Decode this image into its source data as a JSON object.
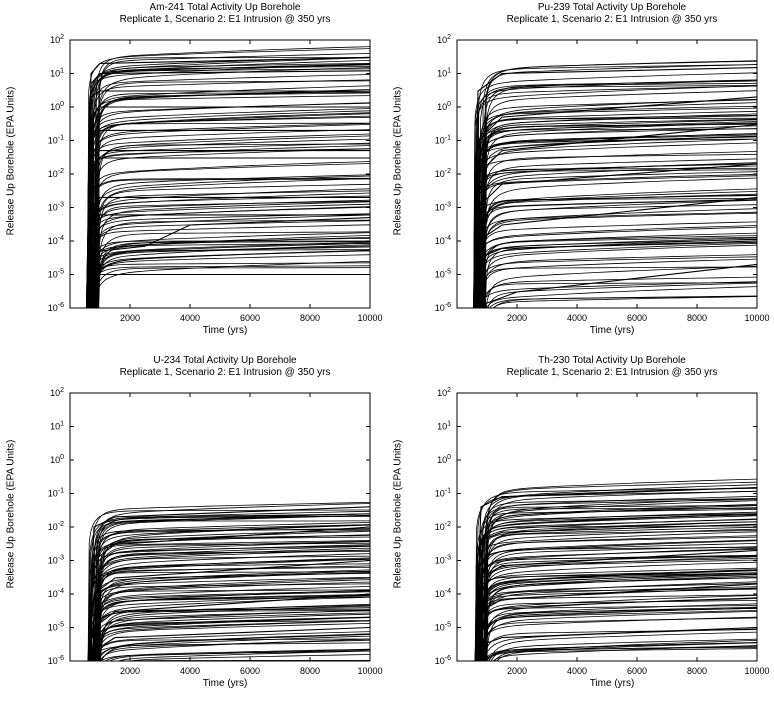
{
  "chart_data": [
    {
      "type": "line",
      "title": "Am-241 Total Activity Up Borehole",
      "subtitle": "Replicate 1, Scenario 2: E1 Intrusion @ 350 yrs",
      "xlabel": "Time (yrs)",
      "ylabel": "Release Up Borehole (EPA Units)",
      "xlim": [
        0,
        10000
      ],
      "ylim": [
        1e-06,
        100
      ],
      "yscale": "log",
      "grid": false,
      "x_ticks": [
        "2000",
        "4000",
        "6000",
        "8000",
        "10000"
      ],
      "y_ticks": [
        "10^-6",
        "10^-5",
        "10^-4",
        "10^-3",
        "10^-2",
        "10^-1",
        "10^0",
        "10^1",
        "10^2"
      ],
      "series_count": 100,
      "onset_time": 550,
      "level_range": [
        1e-05,
        30
      ],
      "series": [
        {
          "x": [
            550,
            700,
            1000,
            10000
          ],
          "y": [
            1e-06,
            10,
            20,
            30
          ]
        },
        {
          "x": [
            550,
            700,
            1000,
            10000
          ],
          "y": [
            1e-06,
            5,
            10,
            12
          ]
        },
        {
          "x": [
            550,
            700,
            1000,
            10000
          ],
          "y": [
            1e-06,
            2,
            3,
            3
          ]
        },
        {
          "x": [
            550,
            700,
            1000,
            10000
          ],
          "y": [
            1e-06,
            0.5,
            1,
            1
          ]
        },
        {
          "x": [
            550,
            700,
            1000,
            10000
          ],
          "y": [
            1e-06,
            0.1,
            0.2,
            0.2
          ]
        },
        {
          "x": [
            550,
            700,
            1000,
            10000
          ],
          "y": [
            1e-06,
            0.03,
            0.05,
            0.05
          ]
        },
        {
          "x": [
            550,
            700,
            1000,
            10000
          ],
          "y": [
            1e-06,
            0.02,
            0.03,
            0.03
          ]
        },
        {
          "x": [
            550,
            700,
            1000,
            10000
          ],
          "y": [
            1e-06,
            0.001,
            0.002,
            0.002
          ]
        },
        {
          "x": [
            550,
            700,
            1000,
            10000
          ],
          "y": [
            1e-06,
            0.0003,
            0.0006,
            0.0006
          ]
        },
        {
          "x": [
            550,
            1000,
            2500,
            4000,
            10000
          ],
          "y": [
            1e-06,
            5e-05,
            7e-05,
            0.0003,
            0.0005
          ]
        },
        {
          "x": [
            550,
            700,
            1000,
            10000
          ],
          "y": [
            1e-06,
            5e-06,
            1e-05,
            1e-05
          ]
        }
      ]
    },
    {
      "type": "line",
      "title": "Pu-239 Total Activity Up Borehole",
      "subtitle": "Replicate 1, Scenario 2: E1 Intrusion @ 350 yrs",
      "xlabel": "Time (yrs)",
      "ylabel": "Release Up Borehole (EPA Units)",
      "xlim": [
        0,
        10000
      ],
      "ylim": [
        1e-06,
        100
      ],
      "yscale": "log",
      "grid": false,
      "x_ticks": [
        "2000",
        "4000",
        "6000",
        "8000",
        "10000"
      ],
      "y_ticks": [
        "10^-6",
        "10^-5",
        "10^-4",
        "10^-3",
        "10^-2",
        "10^-1",
        "10^0",
        "10^1",
        "10^2"
      ],
      "series_count": 100,
      "onset_time": 550,
      "level_range": [
        1e-06,
        15
      ],
      "series": [
        {
          "x": [
            550,
            700,
            1500,
            10000
          ],
          "y": [
            1e-06,
            3,
            10,
            15
          ]
        },
        {
          "x": [
            550,
            700,
            1500,
            10000
          ],
          "y": [
            1e-06,
            0.1,
            0.5,
            2
          ]
        },
        {
          "x": [
            550,
            700,
            1500,
            10000
          ],
          "y": [
            1e-06,
            0.01,
            0.05,
            0.3
          ]
        },
        {
          "x": [
            550,
            700,
            1500,
            10000
          ],
          "y": [
            1e-06,
            0.001,
            0.005,
            0.02
          ]
        },
        {
          "x": [
            550,
            700,
            1500,
            10000
          ],
          "y": [
            1e-06,
            0.0001,
            0.0003,
            0.002
          ]
        },
        {
          "x": [
            550,
            700,
            1500,
            10000
          ],
          "y": [
            1e-06,
            3e-05,
            6e-05,
            0.0001
          ]
        },
        {
          "x": [
            550,
            2000,
            10000
          ],
          "y": [
            1e-06,
            3e-06,
            2e-05
          ]
        }
      ]
    },
    {
      "type": "line",
      "title": "U-234 Total Activity Up Borehole",
      "subtitle": "Replicate 1, Scenario 2: E1 Intrusion @ 350 yrs",
      "xlabel": "Time (yrs)",
      "ylabel": "Release Up Borehole (EPA Units)",
      "xlim": [
        0,
        10000
      ],
      "ylim": [
        1e-06,
        100
      ],
      "yscale": "log",
      "grid": false,
      "x_ticks": [
        "2000",
        "4000",
        "6000",
        "8000",
        "10000"
      ],
      "y_ticks": [
        "10^-6",
        "10^-5",
        "10^-4",
        "10^-3",
        "10^-2",
        "10^-1",
        "10^0",
        "10^1",
        "10^2"
      ],
      "series_count": 100,
      "onset_time": 600,
      "level_range": [
        1e-06,
        0.04
      ],
      "series": [
        {
          "x": [
            600,
            800,
            1500,
            10000
          ],
          "y": [
            1e-06,
            0.01,
            0.02,
            0.04
          ]
        },
        {
          "x": [
            600,
            800,
            1500,
            10000
          ],
          "y": [
            1e-06,
            0.001,
            0.003,
            0.01
          ]
        },
        {
          "x": [
            600,
            800,
            1500,
            10000
          ],
          "y": [
            1e-06,
            0.0001,
            0.0003,
            0.001
          ]
        },
        {
          "x": [
            600,
            800,
            1500,
            10000
          ],
          "y": [
            1e-06,
            1e-05,
            3e-05,
            0.0001
          ]
        },
        {
          "x": [
            600,
            800,
            1500,
            10000
          ],
          "y": [
            1e-06,
            2e-06,
            5e-06,
            1e-05
          ]
        }
      ]
    },
    {
      "type": "line",
      "title": "Th-230 Total Activity Up Borehole",
      "subtitle": "Replicate 1, Scenario 2: E1 Intrusion @ 350 yrs",
      "xlabel": "Time (yrs)",
      "ylabel": "Release Up Borehole (EPA Units)",
      "xlim": [
        0,
        10000
      ],
      "ylim": [
        1e-06,
        100
      ],
      "yscale": "log",
      "grid": false,
      "x_ticks": [
        "2000",
        "4000",
        "6000",
        "8000",
        "10000"
      ],
      "y_ticks": [
        "10^-6",
        "10^-5",
        "10^-4",
        "10^-3",
        "10^-2",
        "10^-1",
        "10^0",
        "10^1",
        "10^2"
      ],
      "series_count": 100,
      "onset_time": 600,
      "level_range": [
        1e-06,
        0.15
      ],
      "series": [
        {
          "x": [
            600,
            800,
            1500,
            10000
          ],
          "y": [
            1e-06,
            0.04,
            0.08,
            0.15
          ]
        },
        {
          "x": [
            600,
            800,
            1500,
            10000
          ],
          "y": [
            1e-06,
            0.004,
            0.007,
            0.012
          ]
        },
        {
          "x": [
            600,
            800,
            1500,
            10000
          ],
          "y": [
            1e-06,
            0.0003,
            0.0007,
            0.002
          ]
        },
        {
          "x": [
            600,
            800,
            1500,
            10000
          ],
          "y": [
            1e-06,
            3e-05,
            7e-05,
            0.0002
          ]
        },
        {
          "x": [
            600,
            800,
            1500,
            10000
          ],
          "y": [
            1e-06,
            3e-06,
            5e-06,
            1e-05
          ]
        }
      ]
    }
  ]
}
